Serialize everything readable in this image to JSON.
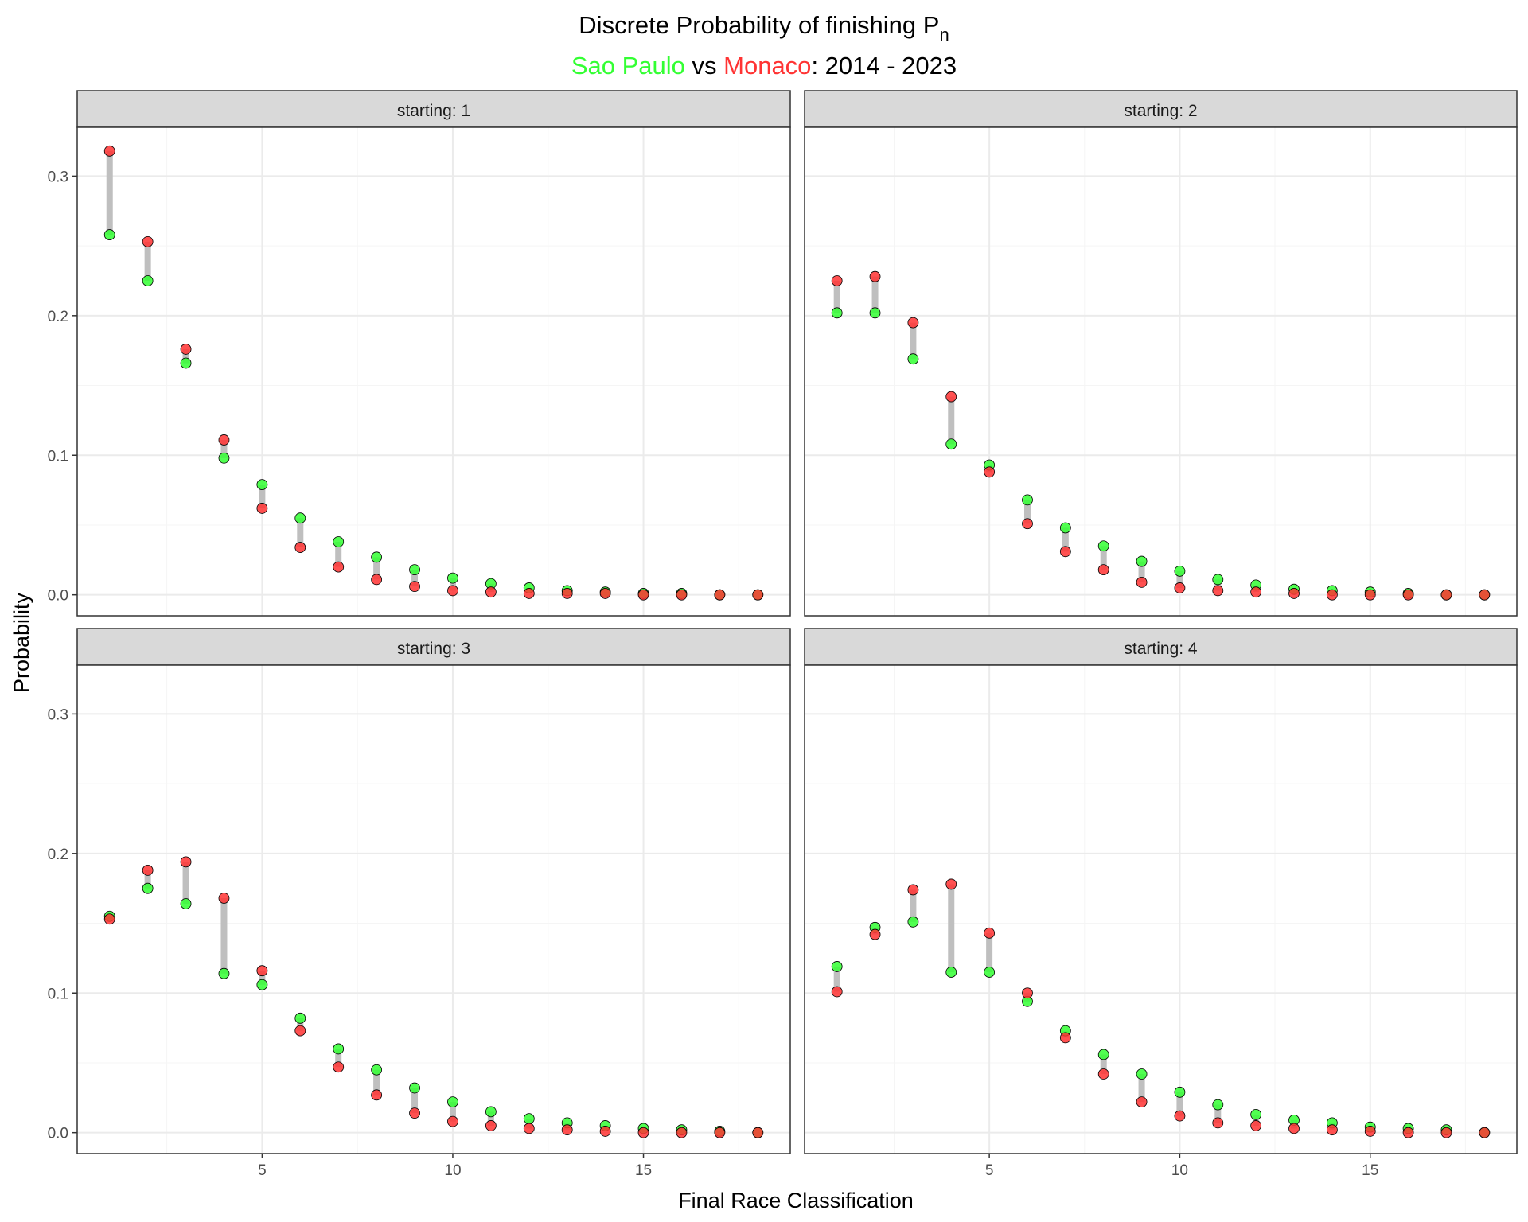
{
  "title": "Discrete Probability of finishing P",
  "title_subscript": "n",
  "subtitle": {
    "series1": "Sao Paulo",
    "vs": " vs ",
    "series2": "Monaco",
    "rest": ": 2014 - 2023"
  },
  "colors": {
    "series1": "#33ff33",
    "series2": "#ff3333",
    "segment": "#bfbfbf",
    "strip_bg": "#d9d9d9",
    "grid_major": "#ebebeb",
    "grid_minor": "#f5f5f5"
  },
  "chart_data": {
    "type": "scatter",
    "facet_by": "starting",
    "xlabel": "Final Race Classification",
    "ylabel": "Probability",
    "xlim": [
      0.15,
      18.85
    ],
    "ylim": [
      -0.015,
      0.335
    ],
    "x_ticks": [
      5,
      10,
      15
    ],
    "y_ticks": [
      0.0,
      0.1,
      0.2,
      0.3
    ],
    "y_tick_labels": [
      "0.0",
      "0.1",
      "0.2",
      "0.3"
    ],
    "grid": true,
    "series_names": [
      "Sao Paulo",
      "Monaco"
    ],
    "x": [
      1,
      2,
      3,
      4,
      5,
      6,
      7,
      8,
      9,
      10,
      11,
      12,
      13,
      14,
      15,
      16,
      17,
      18
    ],
    "panels": [
      {
        "label": "starting: 1",
        "sao_paulo": [
          0.258,
          0.225,
          0.166,
          0.098,
          0.079,
          0.055,
          0.038,
          0.027,
          0.018,
          0.012,
          0.008,
          0.005,
          0.003,
          0.002,
          0.001,
          0.001,
          0.0,
          0.0
        ],
        "monaco": [
          0.318,
          0.253,
          0.176,
          0.111,
          0.062,
          0.034,
          0.02,
          0.011,
          0.006,
          0.003,
          0.002,
          0.001,
          0.001,
          0.001,
          0.0,
          0.0,
          0.0,
          0.0
        ]
      },
      {
        "label": "starting: 2",
        "sao_paulo": [
          0.202,
          0.202,
          0.169,
          0.108,
          0.093,
          0.068,
          0.048,
          0.035,
          0.024,
          0.017,
          0.011,
          0.007,
          0.004,
          0.003,
          0.002,
          0.001,
          0.0,
          0.0
        ],
        "monaco": [
          0.225,
          0.228,
          0.195,
          0.142,
          0.088,
          0.051,
          0.031,
          0.018,
          0.009,
          0.005,
          0.003,
          0.002,
          0.001,
          0.0,
          0.0,
          0.0,
          0.0,
          0.0
        ]
      },
      {
        "label": "starting: 3",
        "sao_paulo": [
          0.155,
          0.175,
          0.164,
          0.114,
          0.106,
          0.082,
          0.06,
          0.045,
          0.032,
          0.022,
          0.015,
          0.01,
          0.007,
          0.005,
          0.003,
          0.002,
          0.001,
          0.0
        ],
        "monaco": [
          0.153,
          0.188,
          0.194,
          0.168,
          0.116,
          0.073,
          0.047,
          0.027,
          0.014,
          0.008,
          0.005,
          0.003,
          0.002,
          0.001,
          0.0,
          0.0,
          0.0,
          0.0
        ]
      },
      {
        "label": "starting: 4",
        "sao_paulo": [
          0.119,
          0.147,
          0.151,
          0.115,
          0.115,
          0.094,
          0.073,
          0.056,
          0.042,
          0.029,
          0.02,
          0.013,
          0.009,
          0.007,
          0.004,
          0.003,
          0.002,
          0.0
        ],
        "monaco": [
          0.101,
          0.142,
          0.174,
          0.178,
          0.143,
          0.1,
          0.068,
          0.042,
          0.022,
          0.012,
          0.007,
          0.005,
          0.003,
          0.002,
          0.001,
          0.0,
          0.0,
          0.0
        ]
      }
    ]
  }
}
